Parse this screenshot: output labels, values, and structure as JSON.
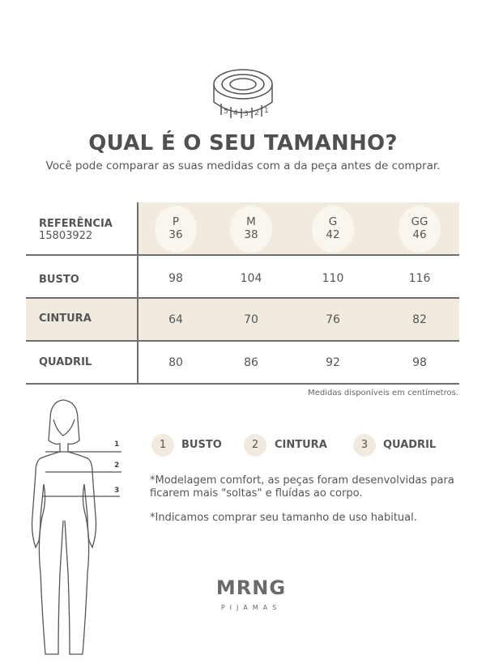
{
  "header": {
    "icon": "measuring-tape-icon",
    "tape_numbers": [
      "5",
      "4",
      "3",
      "2",
      "1"
    ],
    "title": "QUAL É O SEU TAMANHO?",
    "subtitle": "Você pode comparar as suas medidas com a da peça antes de comprar."
  },
  "table": {
    "reference_label": "REFERÊNCIA",
    "reference_code": "15803922",
    "sizes": [
      {
        "letter": "P",
        "number": "36"
      },
      {
        "letter": "M",
        "number": "38"
      },
      {
        "letter": "G",
        "number": "42"
      },
      {
        "letter": "GG",
        "number": "46"
      }
    ],
    "rows": [
      {
        "label": "BUSTO",
        "values": [
          "98",
          "104",
          "110",
          "116"
        ]
      },
      {
        "label": "CINTURA",
        "values": [
          "64",
          "70",
          "76",
          "82"
        ]
      },
      {
        "label": "QUADRIL",
        "values": [
          "80",
          "86",
          "92",
          "98"
        ]
      }
    ],
    "units_note": "Medidas disponíveis em centímetros."
  },
  "figure": {
    "markers": [
      "1",
      "2",
      "3"
    ]
  },
  "legend": [
    {
      "num": "1",
      "label": "BUSTO"
    },
    {
      "num": "2",
      "label": "CINTURA"
    },
    {
      "num": "3",
      "label": "QUADRIL"
    }
  ],
  "notes": [
    "*Modelagem comfort, as peças foram desenvolvidas para ficarem mais \"soltas\" e fluídas ao corpo.",
    "*Indicamos comprar seu tamanho de uso habitual."
  ],
  "brand": {
    "name": "MRNG",
    "tagline": "PIJAMAS"
  },
  "colors": {
    "beige": "#f1ebdf",
    "text": "#4a4a4a"
  }
}
